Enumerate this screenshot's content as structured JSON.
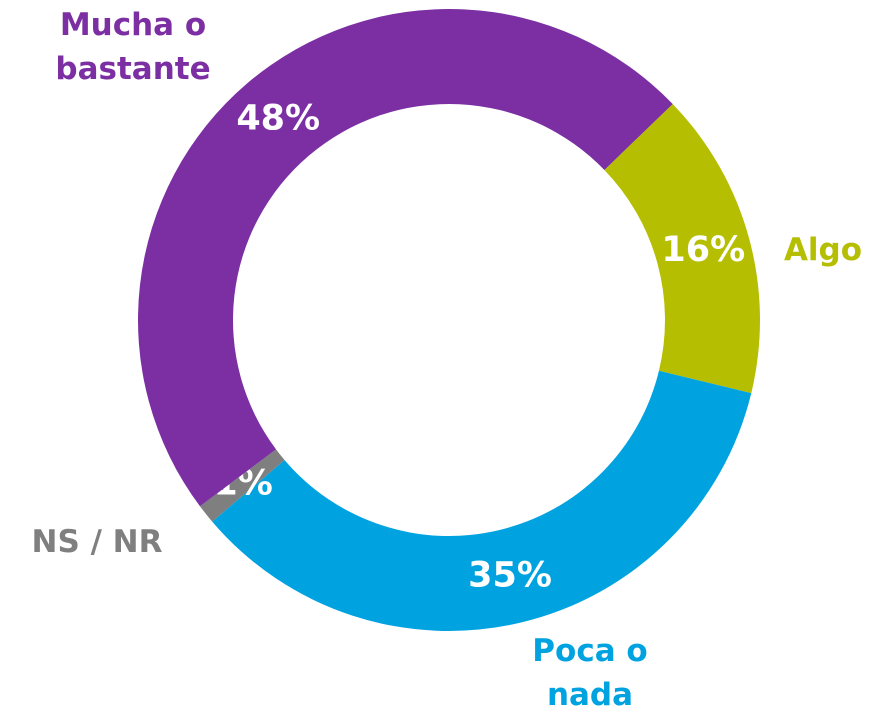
{
  "chart_data": {
    "type": "donut",
    "categories": [
      "Algo",
      "Poca o nada",
      "NS / NR",
      "Mucha o bastante"
    ],
    "values": [
      16,
      35,
      1,
      48
    ],
    "value_labels": [
      "16%",
      "35%",
      "1%",
      "48%"
    ],
    "colors": [
      "#b5be00",
      "#00a3e0",
      "#7f7f7f",
      "#7b2fa3"
    ]
  }
}
